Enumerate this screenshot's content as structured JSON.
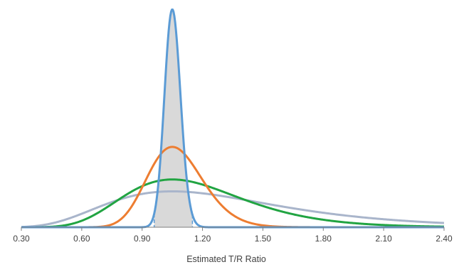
{
  "chart_data": {
    "type": "line",
    "title": "",
    "xlabel": "Estimated T/R Ratio",
    "ylabel": "",
    "xlim": [
      0.3,
      2.4
    ],
    "ylim": [
      0,
      1.0
    ],
    "x_ticks": [
      "0.30",
      "0.60",
      "0.90",
      "1.20",
      "1.50",
      "1.80",
      "2.10",
      "2.40"
    ],
    "x_tick_values": [
      0.3,
      0.6,
      0.9,
      1.2,
      1.5,
      1.8,
      2.1,
      2.4
    ],
    "grid": false,
    "legend": "none",
    "shaded_interval": {
      "from": 0.96,
      "to": 1.15,
      "series": 0
    },
    "series": [
      {
        "color": "#5B9BD5",
        "mode": 1.05,
        "sigma_log": 0.038,
        "peak": 0.99
      },
      {
        "color": "#ED7D31",
        "mode": 1.05,
        "sigma_log": 0.13,
        "peak": 0.365
      },
      {
        "color": "#21A442",
        "mode": 1.05,
        "sigma_log": 0.28,
        "peak": 0.217
      },
      {
        "color": "#A9B5CB",
        "mode": 1.05,
        "sigma_log": 0.4,
        "peak": 0.163
      }
    ],
    "shade_color": "#D9D9D9",
    "axis_color": "#7F7F7F"
  }
}
